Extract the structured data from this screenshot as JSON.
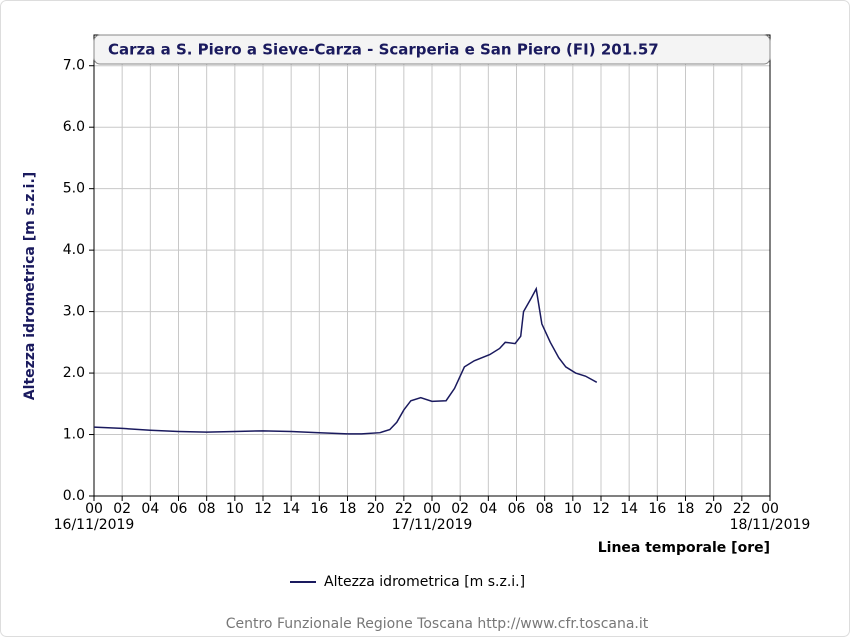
{
  "chart_data": {
    "type": "line",
    "title": "Carza a S. Piero a Sieve-Carza - Scarperia e San Piero  (FI) 201.57",
    "y_label": "Altezza idrometrica [m s.z.i.]",
    "x_label": "Linea temporale [ore]",
    "footer": "Centro Funzionale Regione Toscana http://www.cfr.toscana.it",
    "grid": true,
    "xlim": [
      0,
      48
    ],
    "ylim": [
      0,
      7.5
    ],
    "yticks": [
      {
        "value": 0,
        "label": "0.0"
      },
      {
        "value": 1,
        "label": "1.0"
      },
      {
        "value": 2,
        "label": "2.0"
      },
      {
        "value": 3,
        "label": "3.0"
      },
      {
        "value": 4,
        "label": "4.0"
      },
      {
        "value": 5,
        "label": "5.0"
      },
      {
        "value": 6,
        "label": "6.0"
      },
      {
        "value": 7,
        "label": "7.0"
      }
    ],
    "xticks": [
      {
        "value": 0,
        "label": "00"
      },
      {
        "value": 2,
        "label": "02"
      },
      {
        "value": 4,
        "label": "04"
      },
      {
        "value": 6,
        "label": "06"
      },
      {
        "value": 8,
        "label": "08"
      },
      {
        "value": 10,
        "label": "10"
      },
      {
        "value": 12,
        "label": "12"
      },
      {
        "value": 14,
        "label": "14"
      },
      {
        "value": 16,
        "label": "16"
      },
      {
        "value": 18,
        "label": "18"
      },
      {
        "value": 20,
        "label": "20"
      },
      {
        "value": 22,
        "label": "22"
      },
      {
        "value": 24,
        "label": "00"
      },
      {
        "value": 26,
        "label": "02"
      },
      {
        "value": 28,
        "label": "04"
      },
      {
        "value": 30,
        "label": "06"
      },
      {
        "value": 32,
        "label": "08"
      },
      {
        "value": 34,
        "label": "10"
      },
      {
        "value": 36,
        "label": "12"
      },
      {
        "value": 38,
        "label": "14"
      },
      {
        "value": 40,
        "label": "16"
      },
      {
        "value": 42,
        "label": "18"
      },
      {
        "value": 44,
        "label": "20"
      },
      {
        "value": 46,
        "label": "22"
      },
      {
        "value": 48,
        "label": "00"
      }
    ],
    "date_labels": [
      {
        "value": 0,
        "label": "16/11/2019"
      },
      {
        "value": 24,
        "label": "17/11/2019"
      },
      {
        "value": 48,
        "label": "18/11/2019"
      }
    ],
    "x": [
      0,
      2,
      4,
      6,
      8,
      10,
      12,
      14,
      16,
      18,
      19,
      20.3,
      21,
      21.5,
      22,
      22.5,
      23.2,
      24,
      25,
      25.6,
      26.3,
      27,
      28.1,
      28.8,
      29.2,
      29.9,
      30.3,
      30.5,
      31,
      31.4,
      31.8,
      32.4,
      33,
      33.5,
      34.2,
      34.9,
      35.7
    ],
    "series": [
      {
        "name": "Altezza idrometrica [m s.z.i.]",
        "color": "#1a1a5e",
        "values": [
          1.12,
          1.1,
          1.07,
          1.05,
          1.04,
          1.05,
          1.06,
          1.05,
          1.03,
          1.01,
          1.01,
          1.03,
          1.08,
          1.2,
          1.4,
          1.55,
          1.6,
          1.54,
          1.55,
          1.75,
          2.1,
          2.2,
          2.3,
          2.4,
          2.5,
          2.48,
          2.6,
          3.0,
          3.2,
          3.37,
          2.8,
          2.5,
          2.25,
          2.1,
          2.0,
          1.95,
          1.85
        ]
      }
    ]
  }
}
